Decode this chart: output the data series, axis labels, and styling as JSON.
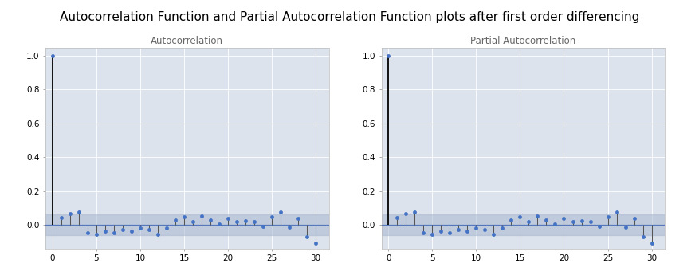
{
  "title": "Autocorrelation Function and Partial Autocorrelation Function plots after first order differencing",
  "title_fontsize": 11,
  "acf_title": "Autocorrelation",
  "pacf_title": "Partial Autocorrelation",
  "n_lags": 31,
  "acf_values": [
    1.0,
    0.04,
    0.065,
    0.075,
    -0.05,
    -0.055,
    -0.04,
    -0.05,
    -0.03,
    -0.04,
    -0.02,
    -0.03,
    -0.055,
    -0.02,
    0.03,
    0.045,
    0.02,
    0.05,
    0.03,
    0.005,
    0.035,
    0.02,
    0.025,
    0.02,
    -0.01,
    0.045,
    0.075,
    -0.015,
    0.035,
    -0.07,
    -0.11
  ],
  "pacf_values": [
    1.0,
    0.04,
    0.065,
    0.075,
    -0.05,
    -0.055,
    -0.04,
    -0.05,
    -0.03,
    -0.04,
    -0.02,
    -0.03,
    -0.055,
    -0.02,
    0.03,
    0.045,
    0.02,
    0.05,
    0.03,
    0.005,
    0.035,
    0.02,
    0.025,
    0.02,
    -0.01,
    0.045,
    0.075,
    -0.015,
    0.035,
    -0.07,
    -0.11
  ],
  "confidence_band": 0.06,
  "ylim": [
    -0.14,
    1.05
  ],
  "yticks": [
    0.0,
    0.2,
    0.4,
    0.6,
    0.8,
    1.0
  ],
  "xlim": [
    -0.8,
    31.5
  ],
  "xticks": [
    0,
    5,
    10,
    15,
    20,
    25,
    30
  ],
  "bg_color": "#dde3ec",
  "band_color": "#a8b8d0",
  "band_alpha": 0.55,
  "marker_color": "#4472c4",
  "stem_color": "#555555",
  "stem0_color": "#111111",
  "hline_color": "#5577bb",
  "grid_color": "#ffffff",
  "subtitle_color": "#666666",
  "label_fontsize": 8.5,
  "tick_fontsize": 7.5
}
